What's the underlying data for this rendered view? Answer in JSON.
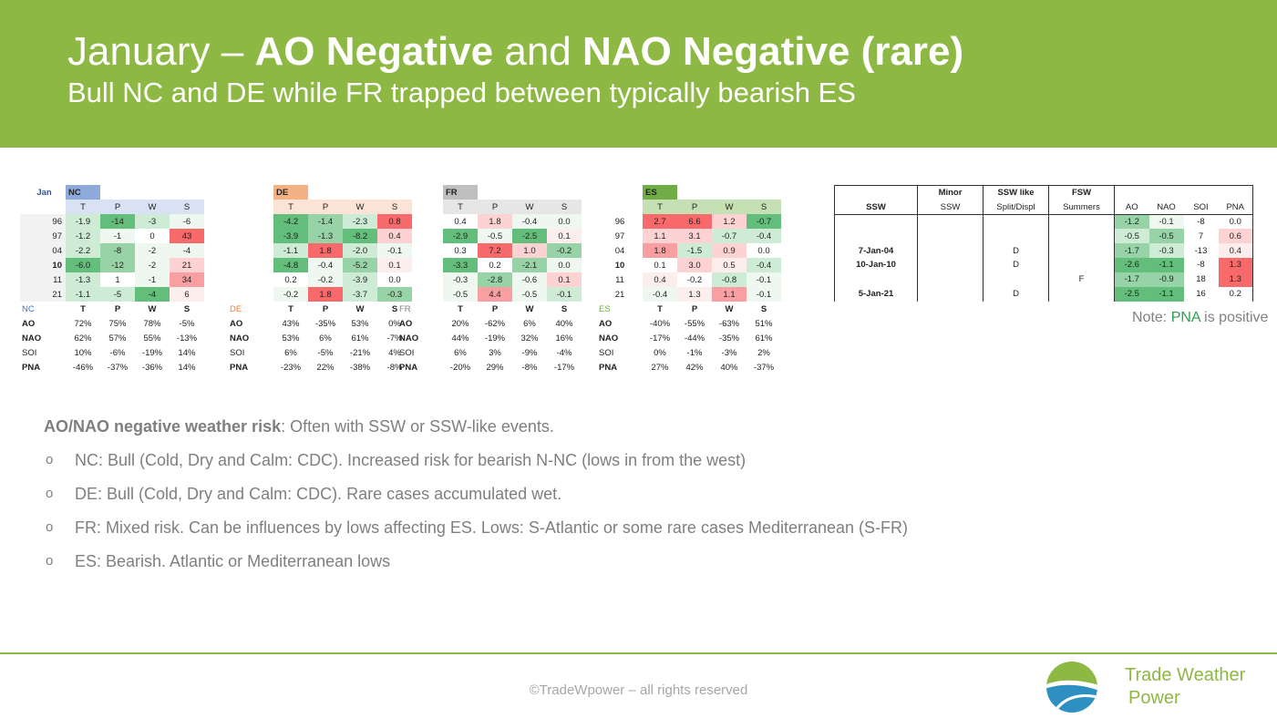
{
  "header": {
    "title_prefix": "January –",
    "title_bold1": "AO Negative",
    "title_mid": "and",
    "title_bold2": "NAO Negative (rare)",
    "subtitle": "Bull NC and DE while FR trapped between typically bearish ES"
  },
  "tables": {
    "month": "Jan",
    "years": [
      "96",
      "97",
      "04",
      "10",
      "11",
      "21"
    ],
    "bold_year_index": 3,
    "blocks": [
      {
        "region": "NC",
        "cols": [
          "T",
          "P",
          "W",
          "S"
        ],
        "rows": [
          [
            "-1.9",
            "-14",
            "-3",
            "-6"
          ],
          [
            "-1.2",
            "-1",
            "0",
            "43"
          ],
          [
            "-2.2",
            "-8",
            "-2",
            "-4"
          ],
          [
            "-6.0",
            "-12",
            "-2",
            "21"
          ],
          [
            "-1.3",
            "1",
            "-1",
            "34"
          ],
          [
            "-1.1",
            "-5",
            "-4",
            "6"
          ]
        ],
        "shade": [
          [
            "g1",
            "g3",
            "g1",
            "g0"
          ],
          [
            "g1",
            "g0",
            "wh",
            "r3"
          ],
          [
            "g1",
            "g2",
            "g0",
            "g0"
          ],
          [
            "g3",
            "g2",
            "g0",
            "r1"
          ],
          [
            "g1",
            "wh",
            "g0",
            "r2"
          ],
          [
            "g1",
            "g1",
            "g3",
            "r0"
          ]
        ],
        "corr_region": "NC",
        "corr_cols": [
          "T",
          "P",
          "W",
          "S"
        ],
        "corr": [
          {
            "idx": "AO",
            "vals": [
              "72%",
              "75%",
              "78%",
              "-5%"
            ]
          },
          {
            "idx": "NAO",
            "vals": [
              "62%",
              "57%",
              "55%",
              "-13%"
            ]
          },
          {
            "idx": "SOI",
            "vals": [
              "10%",
              "-6%",
              "-19%",
              "14%"
            ]
          },
          {
            "idx": "PNA",
            "vals": [
              "-46%",
              "-37%",
              "-36%",
              "14%"
            ]
          }
        ]
      },
      {
        "region": "DE",
        "cols": [
          "T",
          "P",
          "W",
          "S"
        ],
        "rows": [
          [
            "-4.2",
            "-1.4",
            "-2.3",
            "0.8"
          ],
          [
            "-3.9",
            "-1.3",
            "-8.2",
            "0.4"
          ],
          [
            "-1.1",
            "1.8",
            "-2.0",
            "-0.1"
          ],
          [
            "-4.8",
            "-0.4",
            "-5.2",
            "0.1"
          ],
          [
            "0.2",
            "-0.2",
            "-3.9",
            "0.0"
          ],
          [
            "-0.2",
            "1.8",
            "-3.7",
            "-0.3"
          ]
        ],
        "shade": [
          [
            "g3",
            "g2",
            "g1",
            "r3"
          ],
          [
            "g3",
            "g2",
            "g3",
            "r1"
          ],
          [
            "g1",
            "r3",
            "g1",
            "g0"
          ],
          [
            "g3",
            "g0",
            "g2",
            "r0"
          ],
          [
            "wh",
            "g0",
            "g1",
            "wh"
          ],
          [
            "g0",
            "r3",
            "g1",
            "g2"
          ]
        ],
        "corr_region": "DE",
        "corr_cols": [
          "T",
          "P",
          "W",
          "S"
        ],
        "corr": [
          {
            "idx": "AO",
            "vals": [
              "43%",
              "-35%",
              "53%",
              "0%"
            ]
          },
          {
            "idx": "NAO",
            "vals": [
              "53%",
              "6%",
              "61%",
              "-7%"
            ]
          },
          {
            "idx": "SOI",
            "vals": [
              "6%",
              "-5%",
              "-21%",
              "4%"
            ]
          },
          {
            "idx": "PNA",
            "vals": [
              "-23%",
              "22%",
              "-38%",
              "-8%"
            ]
          }
        ]
      },
      {
        "region": "FR",
        "cols": [
          "T",
          "P",
          "W",
          "S"
        ],
        "rows": [
          [
            "0.4",
            "1.8",
            "-0.4",
            "0.0"
          ],
          [
            "-2.9",
            "-0.5",
            "-2.5",
            "0.1"
          ],
          [
            "0.3",
            "7.2",
            "1.0",
            "-0.2"
          ],
          [
            "-3.3",
            "0.2",
            "-2.1",
            "0.0"
          ],
          [
            "-0.3",
            "-2.8",
            "-0.6",
            "0.1"
          ],
          [
            "-0.5",
            "4.4",
            "-0.5",
            "-0.1"
          ]
        ],
        "shade": [
          [
            "wh",
            "r1",
            "g0",
            "g0"
          ],
          [
            "g3",
            "g0",
            "g3",
            "r0"
          ],
          [
            "wh",
            "r3",
            "r1",
            "g2"
          ],
          [
            "g3",
            "wh",
            "g2",
            "g0"
          ],
          [
            "g0",
            "g2",
            "g0",
            "r1"
          ],
          [
            "g0",
            "r2",
            "g0",
            "g1"
          ]
        ],
        "corr_region": "FR",
        "corr_cols": [
          "T",
          "P",
          "W",
          "S"
        ],
        "corr": [
          {
            "idx": "AO",
            "vals": [
              "20%",
              "-62%",
              "6%",
              "40%"
            ]
          },
          {
            "idx": "NAO",
            "vals": [
              "44%",
              "-19%",
              "32%",
              "16%"
            ]
          },
          {
            "idx": "SOI",
            "vals": [
              "6%",
              "3%",
              "-9%",
              "-4%"
            ]
          },
          {
            "idx": "PNA",
            "vals": [
              "-20%",
              "29%",
              "-8%",
              "-17%"
            ]
          }
        ]
      },
      {
        "region": "ES",
        "cols": [
          "T",
          "P",
          "W",
          "S"
        ],
        "rows": [
          [
            "2.7",
            "6.6",
            "1.2",
            "-0.7"
          ],
          [
            "1.1",
            "3.1",
            "-0.7",
            "-0.4"
          ],
          [
            "1.8",
            "-1.5",
            "0.9",
            "0.0"
          ],
          [
            "0.1",
            "3.0",
            "0.5",
            "-0.4"
          ],
          [
            "0.4",
            "-0.2",
            "-0.8",
            "-0.1"
          ],
          [
            "-0.4",
            "1.3",
            "1.1",
            "-0.1"
          ]
        ],
        "shade": [
          [
            "r3",
            "r3",
            "r1",
            "g3"
          ],
          [
            "r1",
            "r1",
            "g1",
            "g1"
          ],
          [
            "r2",
            "g1",
            "r1",
            "wh"
          ],
          [
            "wh",
            "r1",
            "r0",
            "g1"
          ],
          [
            "r0",
            "wh",
            "g1",
            "g0"
          ],
          [
            "g0",
            "r0",
            "r2",
            "g0"
          ]
        ],
        "corr_region": "ES",
        "corr_cols": [
          "T",
          "P",
          "W",
          "S"
        ],
        "corr": [
          {
            "idx": "AO",
            "vals": [
              "-40%",
              "-55%",
              "-63%",
              "51%"
            ]
          },
          {
            "idx": "NAO",
            "vals": [
              "-17%",
              "-44%",
              "-35%",
              "61%"
            ]
          },
          {
            "idx": "SOI",
            "vals": [
              "0%",
              "-1%",
              "-3%",
              "2%"
            ]
          },
          {
            "idx": "PNA",
            "vals": [
              "27%",
              "42%",
              "40%",
              "-37%"
            ]
          }
        ]
      }
    ]
  },
  "ssw_table": {
    "h1": [
      "",
      "Minor",
      "SSW like",
      "FSW"
    ],
    "h2": [
      "SSW",
      "SSW",
      "Split/Displ",
      "Summers"
    ],
    "idx_cols": [
      "AO",
      "NAO",
      "SOI",
      "PNA"
    ],
    "rows": [
      {
        "date": "",
        "minor": "",
        "like": "",
        "fsw": "",
        "vals": [
          "-1.2",
          "-0.1",
          "-8",
          "0.0"
        ],
        "shade": [
          "g2",
          "g0",
          "wh",
          "wh"
        ]
      },
      {
        "date": "",
        "minor": "",
        "like": "",
        "fsw": "",
        "vals": [
          "-0.5",
          "-0.5",
          "7",
          "0.6"
        ],
        "shade": [
          "g1",
          "g2",
          "wh",
          "r1"
        ]
      },
      {
        "date": "7-Jan-04",
        "minor": "",
        "like": "D",
        "fsw": "",
        "vals": [
          "-1.7",
          "-0.3",
          "-13",
          "0.4"
        ],
        "shade": [
          "g2",
          "g1",
          "wh",
          "r0"
        ]
      },
      {
        "date": "10-Jan-10",
        "minor": "",
        "like": "D",
        "fsw": "",
        "vals": [
          "-2.6",
          "-1.1",
          "-8",
          "1.3"
        ],
        "shade": [
          "g3",
          "g3",
          "wh",
          "r3"
        ]
      },
      {
        "date": "",
        "minor": "",
        "like": "",
        "fsw": "F",
        "vals": [
          "-1.7",
          "-0.9",
          "18",
          "1.3"
        ],
        "shade": [
          "g2",
          "g2",
          "wh",
          "r3"
        ]
      },
      {
        "date": "5-Jan-21",
        "minor": "",
        "like": "D",
        "fsw": "",
        "vals": [
          "-2.5",
          "-1.1",
          "16",
          "0.2"
        ],
        "shade": [
          "g3",
          "g3",
          "wh",
          "wh"
        ]
      }
    ],
    "note_prefix": "Note:",
    "note_pna": "PNA",
    "note_suffix": "is positive"
  },
  "body": {
    "risk_title": "AO/NAO negative weather risk",
    "risk_text": ": Often with SSW or SSW-like events.",
    "bullet_mark": "o",
    "bullets": [
      "NC: Bull (Cold, Dry and Calm: CDC). Increased risk for bearish N-NC (lows in from the west)",
      "DE: Bull (Cold, Dry and Calm: CDC). Rare cases accumulated wet.",
      "FR: Mixed risk. Can be influences by lows affecting ES. Lows: S-Atlantic or some rare cases Mediterranean (S-FR)",
      "ES: Bearish. Atlantic or Mediterranean lows"
    ]
  },
  "footer": {
    "copyright": "©TradeWpower – all rights reserved",
    "brand_line1": "Trade Weather",
    "brand_line2": "Power",
    "logo_icon": "trade-weather-power-logo",
    "accent": "#8db843"
  }
}
